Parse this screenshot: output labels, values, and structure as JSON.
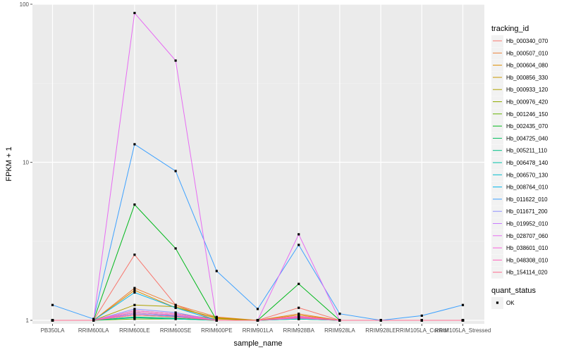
{
  "chart_data": {
    "type": "line",
    "xlabel": "sample_name",
    "ylabel": "FPKM + 1",
    "y_scale": "log10",
    "ylim": [
      0.95,
      100
    ],
    "y_ticks": [
      1,
      10,
      100
    ],
    "grid": true,
    "legend_position": "right",
    "categories": [
      "PB350LA",
      "RRIM600LA",
      "RRIM600LE",
      "RRIM600SE",
      "RRIM600PE",
      "RRIM901LA",
      "RRIM928BA",
      "RRIM928LA",
      "RRIM928LE",
      "RRIM105LA_Control",
      "RRIM105LA_Stressed"
    ],
    "legend": {
      "title": "tracking_id",
      "entries": [
        "Hb_000340_070",
        "Hb_000507_010",
        "Hb_000604_080",
        "Hb_000856_330",
        "Hb_000933_120",
        "Hb_000976_420",
        "Hb_001246_150",
        "Hb_002435_070",
        "Hb_004725_040",
        "Hb_005211_110",
        "Hb_006478_140",
        "Hb_006570_130",
        "Hb_008764_010",
        "Hb_011622_010",
        "Hb_011671_200",
        "Hb_019952_010",
        "Hb_028707_060",
        "Hb_038601_010",
        "Hb_048308_010",
        "Hb_154114_020"
      ]
    },
    "shape_legend": {
      "title": "quant_status",
      "entries": [
        "OK"
      ]
    },
    "series": [
      {
        "name": "Hb_000340_070",
        "color": "#F8766D",
        "values": [
          1,
          1,
          2.6,
          1.25,
          1,
          1,
          1.2,
          1,
          1,
          1,
          1
        ]
      },
      {
        "name": "Hb_000507_010",
        "color": "#EC8239",
        "values": [
          1,
          1,
          1.6,
          1.25,
          1.05,
          1,
          1.1,
          1,
          1,
          1,
          1
        ]
      },
      {
        "name": "Hb_000604_080",
        "color": "#DB8E00",
        "values": [
          1,
          1,
          1.55,
          1.2,
          1.04,
          1,
          1.08,
          1,
          1,
          1,
          1
        ]
      },
      {
        "name": "Hb_000856_330",
        "color": "#C79800",
        "values": [
          1,
          1,
          1.15,
          1.1,
          1.02,
          1,
          1.05,
          1,
          1,
          1,
          1
        ]
      },
      {
        "name": "Hb_000933_120",
        "color": "#AEA200",
        "values": [
          1,
          1,
          1.25,
          1.22,
          1.03,
          1,
          1.06,
          1,
          1,
          1,
          1
        ]
      },
      {
        "name": "Hb_000976_420",
        "color": "#8FAA00",
        "values": [
          1,
          1,
          1.08,
          1.05,
          1,
          1,
          1.03,
          1,
          1,
          1,
          1
        ]
      },
      {
        "name": "Hb_001246_150",
        "color": "#64B200",
        "values": [
          1,
          1,
          1.02,
          1.02,
          1,
          1,
          1.02,
          1,
          1,
          1,
          1
        ]
      },
      {
        "name": "Hb_002435_070",
        "color": "#00B81B",
        "values": [
          1,
          1,
          5.4,
          2.85,
          1,
          1,
          1.7,
          1,
          1,
          1,
          1
        ]
      },
      {
        "name": "Hb_004725_040",
        "color": "#00BD5C",
        "values": [
          1,
          1,
          1.05,
          1.03,
          1,
          1,
          1.02,
          1,
          1,
          1,
          1
        ]
      },
      {
        "name": "Hb_005211_110",
        "color": "#00C087",
        "values": [
          1,
          1,
          1.12,
          1.08,
          1,
          1,
          1.04,
          1,
          1,
          1,
          1
        ]
      },
      {
        "name": "Hb_006478_140",
        "color": "#00C1AB",
        "values": [
          1,
          1,
          1.04,
          1.02,
          1,
          1,
          1.02,
          1,
          1,
          1,
          1
        ]
      },
      {
        "name": "Hb_006570_130",
        "color": "#00BCCC",
        "values": [
          1,
          1,
          1.1,
          1.06,
          1,
          1,
          1.03,
          1,
          1,
          1,
          1
        ]
      },
      {
        "name": "Hb_008764_010",
        "color": "#00B6EB",
        "values": [
          1,
          1,
          1.5,
          1.2,
          1,
          1,
          1.05,
          1,
          1,
          1,
          1
        ]
      },
      {
        "name": "Hb_011622_010",
        "color": "#3DA1FF",
        "values": [
          1.25,
          1.02,
          13,
          8.8,
          2.05,
          1.18,
          3.0,
          1.1,
          1,
          1.07,
          1.25
        ]
      },
      {
        "name": "Hb_011671_200",
        "color": "#8F91FF",
        "values": [
          1,
          1,
          1.18,
          1.12,
          1,
          1,
          1.05,
          1,
          1,
          1,
          1
        ]
      },
      {
        "name": "Hb_019952_010",
        "color": "#C77CFF",
        "values": [
          1,
          1,
          1.1,
          1.07,
          1,
          1,
          1.03,
          1,
          1,
          1,
          1
        ]
      },
      {
        "name": "Hb_028707_060",
        "color": "#E76BF3",
        "values": [
          1,
          1,
          88,
          44,
          1,
          1,
          3.5,
          1,
          1,
          1,
          1
        ]
      },
      {
        "name": "Hb_038601_010",
        "color": "#F962DD",
        "values": [
          1,
          1,
          1.15,
          1.1,
          1,
          1,
          1.06,
          1,
          1,
          1,
          1
        ]
      },
      {
        "name": "Hb_048308_010",
        "color": "#FF62BC",
        "values": [
          1,
          1,
          1.12,
          1.08,
          1,
          1,
          1.05,
          1,
          1,
          1,
          1
        ]
      },
      {
        "name": "Hb_154114_020",
        "color": "#FF6C91",
        "values": [
          1,
          1,
          1.08,
          1.05,
          1,
          1,
          1.04,
          1,
          1,
          1,
          1
        ]
      }
    ]
  }
}
